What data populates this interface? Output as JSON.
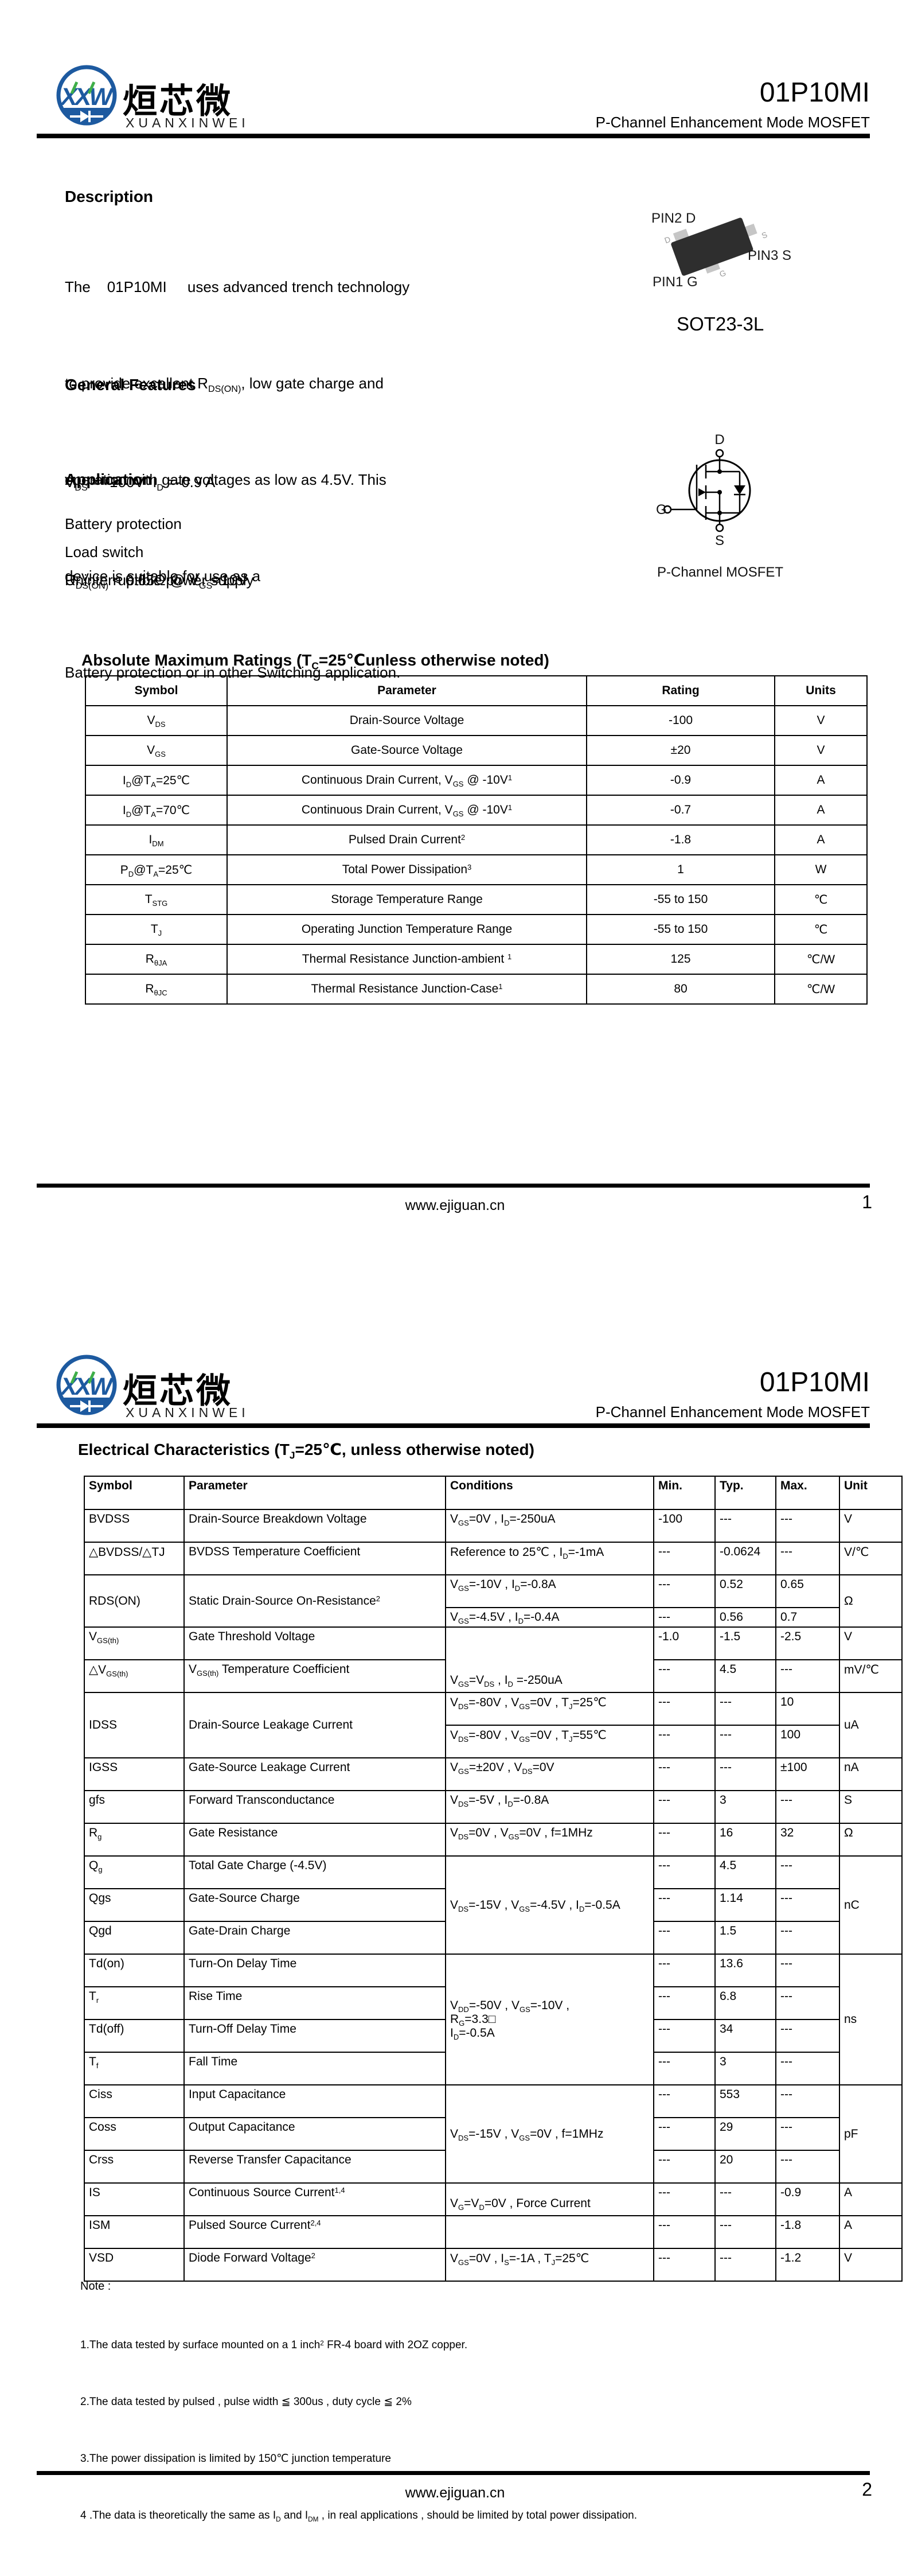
{
  "brand": {
    "part": "01P10MI",
    "subtitle": "P-Channel Enhancement Mode MOSFET",
    "logo": {
      "acronym": "XXW",
      "chinese": "烜芯微",
      "roman": "XUANXINWEI",
      "blue": "#1d5aa0",
      "green": "#3fae49"
    }
  },
  "page1": {
    "description": {
      "title": "Description",
      "lines": [
        "The    01P10MI     uses advanced trench technology",
        "to provide excellent R~DS(ON)~, low gate charge and",
        "operation with gate voltages as low as 4.5V. This",
        "device is suitable for use as a",
        "Battery protection or in other Switching application."
      ]
    },
    "general_features": {
      "title": "General Features",
      "lines": [
        "V~DS~ = -100V  I~D~ =-0.9 A",
        "R~DS(ON)~ < 0.65Ω @ V~GS~=10V"
      ]
    },
    "application": {
      "title": "Application",
      "items": [
        "Battery protection",
        "Load switch",
        "Uninterruptible power supply"
      ]
    },
    "package": {
      "pin2_label": "PIN2 D",
      "pin3_label": "PIN3 S",
      "pin1_label": "PIN1 G",
      "pin_d": "D",
      "pin_s": "S",
      "pin_g": "G",
      "name": "SOT23-3L"
    },
    "mosfet_symbol": {
      "d": "D",
      "g": "G",
      "s": "S",
      "caption": "P-Channel MOSFET"
    },
    "abs_max": {
      "title": "Absolute Maximum Ratings (T~C~=25℃unless otherwise noted)",
      "columns": [
        "Symbol",
        "Parameter",
        "Rating",
        "Units"
      ],
      "rows": [
        [
          "V~DS~",
          "Drain-Source Voltage",
          "-100",
          "V"
        ],
        [
          "V~GS~",
          "Gate-Source Voltage",
          "±20",
          "V"
        ],
        [
          "I~D~@T~A~=25℃",
          "Continuous Drain Current, V~GS~ @ -10V^1^",
          "-0.9",
          "A"
        ],
        [
          "I~D~@T~A~=70℃",
          "Continuous Drain Current, V~GS~ @ -10V^1^",
          "-0.7",
          "A"
        ],
        [
          "I~DM~",
          "Pulsed Drain Current^2^",
          "-1.8",
          "A"
        ],
        [
          "P~D~@T~A~=25℃",
          "Total Power Dissipation^3^",
          "1",
          "W"
        ],
        [
          "T~STG~",
          "Storage Temperature Range",
          "-55 to 150",
          "℃"
        ],
        [
          "T~J~",
          "Operating Junction Temperature Range",
          "-55 to 150",
          "℃"
        ],
        [
          "R~θJA~",
          "Thermal Resistance Junction-ambient ^1^",
          "125",
          "℃/W"
        ],
        [
          "R~θJC~",
          "Thermal Resistance Junction-Case^1^",
          "80",
          "℃/W"
        ]
      ]
    }
  },
  "page2": {
    "elec": {
      "title": "Electrical Characteristics (T~J~=25℃, unless otherwise noted)",
      "columns": [
        "Symbol",
        "Parameter",
        "Conditions",
        "Min.",
        "Typ.",
        "Max.",
        "Unit"
      ],
      "rows": [
        [
          "BVDSS",
          "Drain-Source Breakdown Voltage",
          "V~GS~=0V , I~D~=-250uA",
          "-100",
          "---",
          "---",
          "V"
        ],
        [
          "△BVDSS/△TJ",
          "BVDSS Temperature Coefficient",
          "Reference to 25℃ , I~D~=-1mA",
          "---",
          "-0.0624",
          "---",
          "V/℃"
        ],
        [
          {
            "t": "RDS(ON)",
            "rs": 2,
            "cls": "vc"
          },
          {
            "t": "Static Drain-Source On-Resistance^2^",
            "rs": 2,
            "cls": "vc"
          },
          "V~GS~=-10V , I~D~=-0.8A",
          "---",
          "0.52",
          "0.65",
          {
            "t": "Ω",
            "rs": 2,
            "cls": "vc"
          }
        ],
        {
          "cls": "short",
          "cells": [
            "V~GS~=-4.5V , I~D~=-0.4A",
            "---",
            "0.56",
            "0.7"
          ]
        },
        [
          "V~GS(th)~",
          "Gate Threshold Voltage",
          {
            "t": "V~GS~=V~DS~ , I~D~ =-250uA",
            "rs": 2,
            "cls": "vb"
          },
          "-1.0",
          "-1.5",
          "-2.5",
          "V"
        ],
        [
          "△V~GS(th)~",
          "V~GS(th)~ Temperature Coefficient",
          "---",
          "4.5",
          "---",
          "mV/℃"
        ],
        [
          {
            "t": "IDSS",
            "rs": 2,
            "cls": "vc"
          },
          {
            "t": "Drain-Source Leakage Current",
            "rs": 2,
            "cls": "vc"
          },
          "V~DS~=-80V , V~GS~=0V , T~J~=25℃",
          "---",
          "---",
          "10",
          {
            "t": "uA",
            "rs": 2,
            "cls": "vc"
          }
        ],
        [
          "V~DS~=-80V , V~GS~=0V , T~J~=55℃",
          "---",
          "---",
          "100"
        ],
        [
          "IGSS",
          "Gate-Source Leakage Current",
          "V~GS~=±20V , V~DS~=0V",
          "---",
          "---",
          "±100",
          "nA"
        ],
        [
          "gfs",
          "Forward Transconductance",
          "V~DS~=-5V , I~D~=-0.8A",
          "---",
          "3",
          "---",
          "S"
        ],
        [
          "R~g~",
          "Gate Resistance",
          "V~DS~=0V , V~GS~=0V , f=1MHz",
          "---",
          "16",
          "32",
          "Ω"
        ],
        [
          "Q~g~",
          "Total Gate Charge (-4.5V)",
          {
            "t": "V~DS~=-15V , V~GS~=-4.5V , I~D~=-0.5A",
            "rs": 3,
            "cls": "vc"
          },
          "---",
          "4.5",
          "---",
          {
            "t": "nC",
            "rs": 3,
            "cls": "vc"
          }
        ],
        [
          "Qgs",
          "Gate-Source Charge",
          "---",
          "1.14",
          "---"
        ],
        [
          "Qgd",
          "Gate-Drain Charge",
          "---",
          "1.5",
          "---"
        ],
        [
          "Td(on)",
          "Turn-On Delay Time",
          {
            "t": "V~DD~=-50V , V~GS~=-10V ,\nR~G~=3.3□\nI~D~=-0.5A",
            "rs": 4,
            "cls": "vc"
          },
          "---",
          "13.6",
          "---",
          {
            "t": "ns",
            "rs": 4,
            "cls": "vc"
          }
        ],
        [
          "T~r~",
          "Rise Time",
          "---",
          "6.8",
          "---"
        ],
        [
          "Td(off)",
          "Turn-Off Delay Time",
          "---",
          "34",
          "---"
        ],
        [
          "T~f~",
          "Fall Time",
          "---",
          "3",
          "---"
        ],
        [
          "Ciss",
          "Input Capacitance",
          {
            "t": "V~DS~=-15V , V~GS~=0V , f=1MHz",
            "rs": 3,
            "cls": "vc"
          },
          "---",
          "553",
          "---",
          {
            "t": "pF",
            "rs": 3,
            "cls": "vc"
          }
        ],
        [
          "Coss",
          "Output Capacitance",
          "---",
          "29",
          "---"
        ],
        [
          "Crss",
          "Reverse Transfer Capacitance",
          "---",
          "20",
          "---"
        ],
        [
          "IS",
          "Continuous Source Current^1,4^",
          {
            "t": "V~G~=V~D~=0V , Force Current",
            "cls": "vb"
          },
          "---",
          "---",
          "-0.9",
          "A"
        ],
        [
          "ISM",
          "Pulsed Source Current^2,4^",
          "",
          "---",
          "---",
          "-1.8",
          "A"
        ],
        [
          "VSD",
          "Diode Forward Voltage^2^",
          "V~GS~=0V , I~S~=-1A , T~J~=25℃",
          "---",
          "---",
          "-1.2",
          "V"
        ]
      ]
    },
    "notes": {
      "title": "Note :",
      "items": [
        "1.The data tested by surface mounted on a 1 inch^2^ FR-4 board with 2OZ copper.",
        "2.The data tested by pulsed , pulse width ≦ 300us , duty cycle ≦ 2%",
        "3.The power dissipation is limited by 150℃ junction temperature",
        "4 .The data is theoretically the same as I~D~ and I~DM~ , in real applications , should be limited by total power dissipation."
      ]
    }
  },
  "footer": {
    "url": "www.ejiguan.cn",
    "page1_number": "1",
    "page2_number": "2"
  }
}
